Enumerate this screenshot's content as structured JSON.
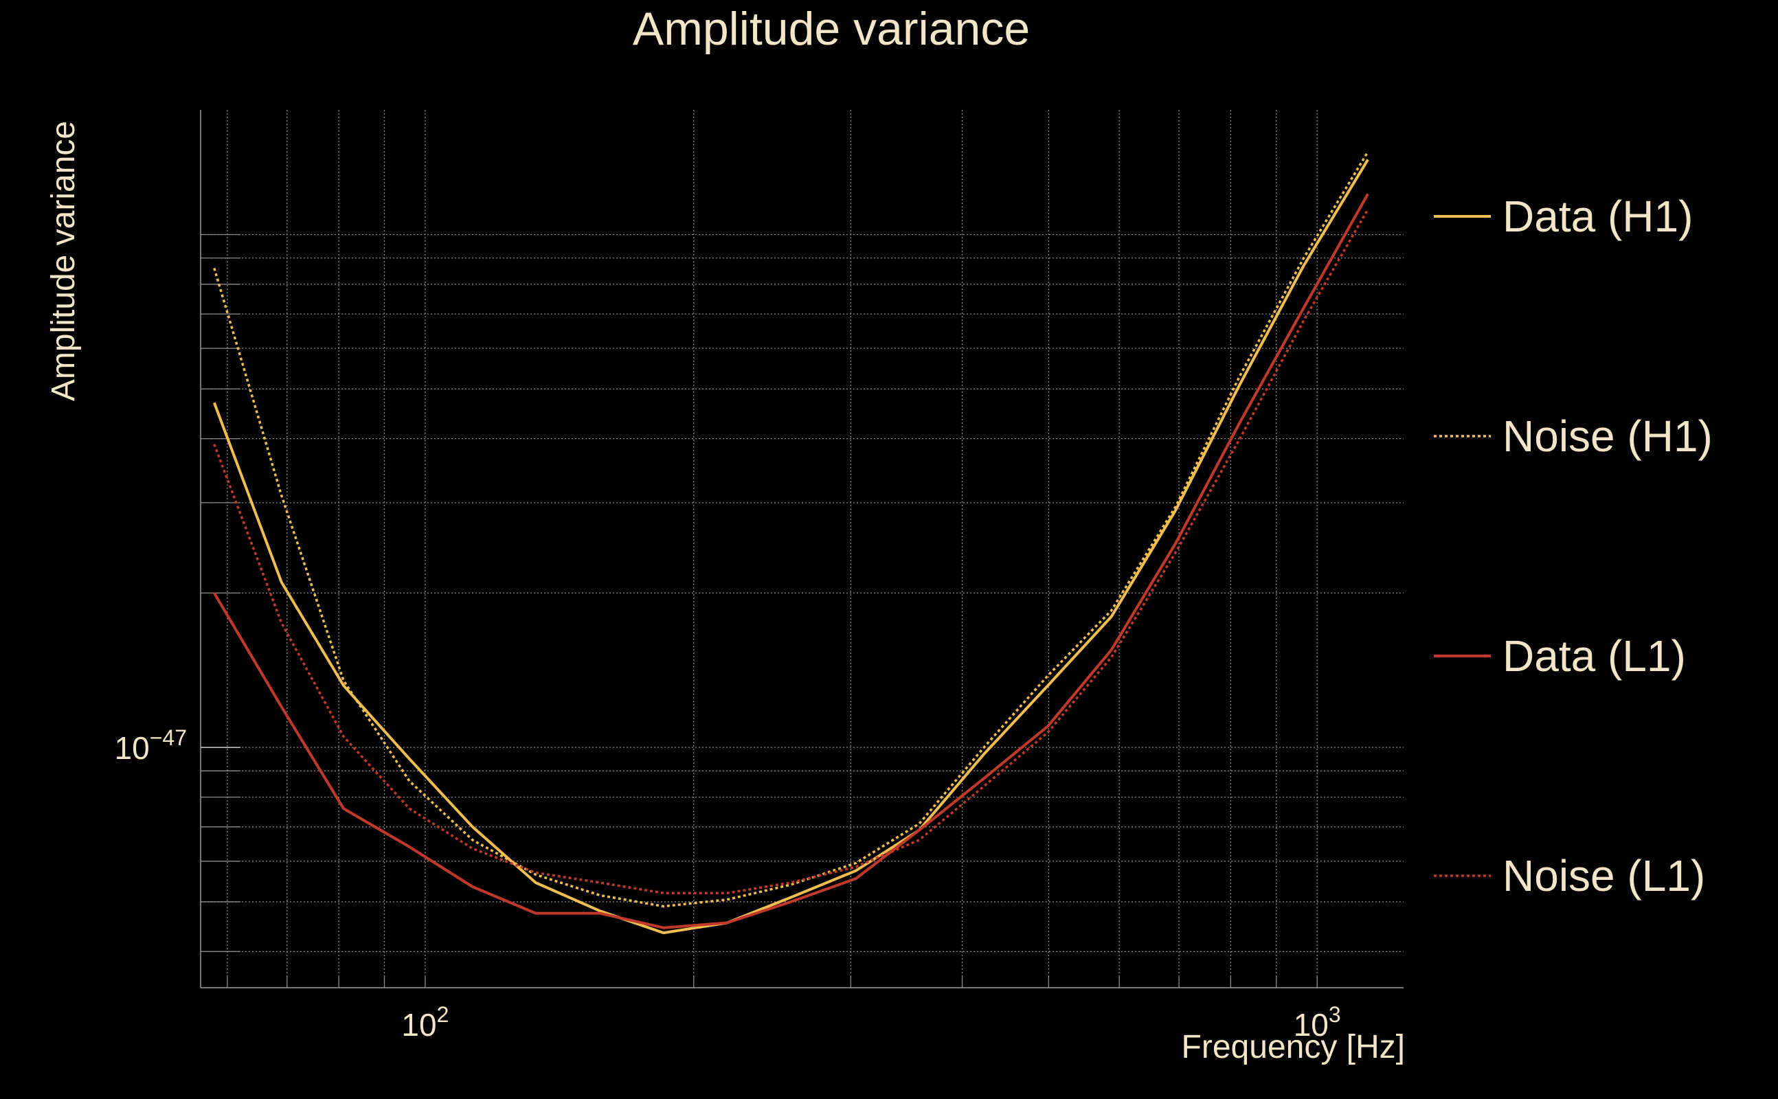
{
  "colors": {
    "background": "#000000",
    "text": "#f3e6c8",
    "grid": "#8a8a8a",
    "series_h1": "#f0be4f",
    "series_l1": "#c0392b"
  },
  "chart_data": {
    "type": "line",
    "title": "Amplitude variance",
    "xlabel": "Frequency [Hz]",
    "ylabel": "Amplitude variance",
    "x_scale": "log",
    "y_scale": "log",
    "xlim": [
      56,
      1250
    ],
    "ylim": [
      3.4e-48,
      1.75e-46
    ],
    "x_tick_labels": [
      {
        "value": 100,
        "base": "10",
        "exp": "2"
      },
      {
        "value": 1000,
        "base": "10",
        "exp": "3"
      }
    ],
    "y_tick_labels": [
      {
        "value": 1e-47,
        "base": "10",
        "exp": "−47"
      }
    ],
    "grid": true,
    "legend_position": "right",
    "series": [
      {
        "name": "Data (H1)",
        "style": "solid",
        "color": "#f0be4f",
        "x": [
          58,
          69,
          81,
          96,
          113,
          133,
          157,
          185,
          218,
          257,
          304,
          358,
          423,
          499,
          588,
          694,
          819,
          966,
          1140
        ],
        "y": [
          4.7e-47,
          2.1e-47,
          1.32e-47,
          9.5e-48,
          7e-48,
          5.45e-48,
          4.8e-48,
          4.35e-48,
          4.55e-48,
          5.1e-48,
          5.75e-48,
          6.9e-48,
          9.7e-48,
          1.32e-47,
          1.8e-47,
          2.9e-47,
          5.1e-47,
          8.7e-47,
          1.4e-46
        ]
      },
      {
        "name": "Noise (H1)",
        "style": "dotted",
        "color": "#f0be4f",
        "x": [
          58,
          69,
          81,
          96,
          113,
          133,
          157,
          185,
          218,
          257,
          304,
          358,
          423,
          499,
          588,
          694,
          819,
          966,
          1140
        ],
        "y": [
          8.6e-47,
          3.1e-47,
          1.35e-47,
          8.6e-48,
          6.6e-48,
          5.65e-48,
          5.15e-48,
          4.9e-48,
          5.05e-48,
          5.4e-48,
          5.95e-48,
          7.1e-48,
          1e-47,
          1.38e-47,
          1.85e-47,
          2.95e-47,
          5.3e-47,
          9e-47,
          1.45e-46
        ]
      },
      {
        "name": "Data (L1)",
        "style": "solid",
        "color": "#c0392b",
        "x": [
          58,
          69,
          81,
          96,
          113,
          133,
          157,
          185,
          218,
          257,
          304,
          358,
          423,
          499,
          588,
          694,
          819,
          966,
          1140
        ],
        "y": [
          2e-47,
          1.2e-47,
          7.6e-48,
          6.4e-48,
          5.35e-48,
          4.75e-48,
          4.75e-48,
          4.45e-48,
          4.55e-48,
          5e-48,
          5.55e-48,
          6.9e-48,
          8.7e-48,
          1.1e-47,
          1.55e-47,
          2.5e-47,
          4.3e-47,
          7.2e-47,
          1.2e-46
        ]
      },
      {
        "name": "Noise (L1)",
        "style": "dotted",
        "color": "#c0392b",
        "x": [
          58,
          69,
          81,
          96,
          113,
          133,
          157,
          185,
          218,
          257,
          304,
          358,
          423,
          499,
          588,
          694,
          819,
          966,
          1140
        ],
        "y": [
          3.9e-47,
          1.75e-47,
          1.05e-47,
          7.6e-48,
          6.35e-48,
          5.7e-48,
          5.45e-48,
          5.2e-48,
          5.2e-48,
          5.45e-48,
          5.85e-48,
          6.6e-48,
          8.4e-48,
          1.07e-47,
          1.5e-47,
          2.4e-47,
          4e-47,
          6.8e-47,
          1.12e-46
        ]
      }
    ]
  }
}
